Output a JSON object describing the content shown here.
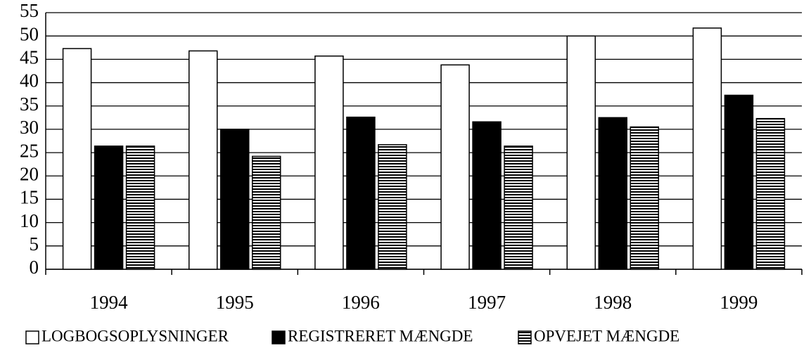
{
  "chart_data": {
    "type": "bar",
    "categories": [
      "1994",
      "1995",
      "1996",
      "1997",
      "1998",
      "1999"
    ],
    "series": [
      {
        "name": "LOGBOGSOPLYSNINGER",
        "color": "#ffffff",
        "values": [
          47.3,
          46.8,
          45.7,
          43.8,
          50.0,
          51.7
        ]
      },
      {
        "name": "REGISTRERET MÆNGDE",
        "color": "#000000",
        "values": [
          26.4,
          30.0,
          32.6,
          31.6,
          32.5,
          37.3
        ]
      },
      {
        "name": "OPVEJET MÆNGDE",
        "color": "striped",
        "values": [
          26.4,
          24.2,
          26.7,
          26.4,
          30.5,
          32.3
        ]
      }
    ],
    "ylim": [
      0,
      55
    ],
    "yticks": [
      0,
      5,
      10,
      15,
      20,
      25,
      30,
      35,
      40,
      45,
      50,
      55
    ],
    "grid": true,
    "legend": "bottom"
  }
}
